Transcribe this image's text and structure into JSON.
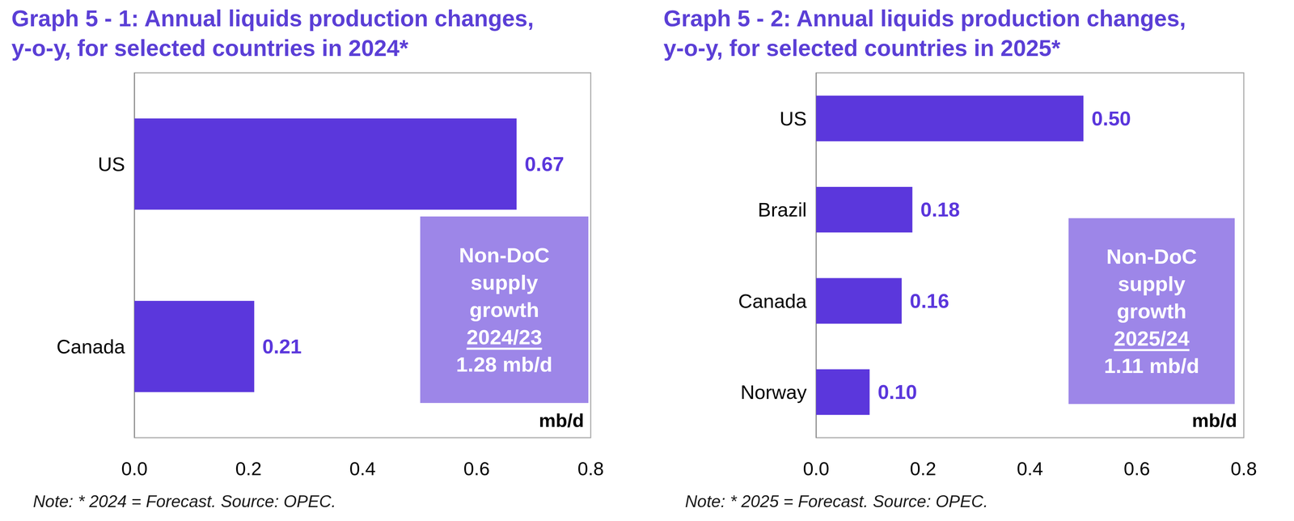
{
  "chart_data": [
    {
      "type": "bar",
      "title": "Graph 5 - 1: Annual liquids production changes, y-o-y, for selected countries in 2024*",
      "orientation": "horizontal",
      "categories": [
        "US",
        "Canada"
      ],
      "values": [
        0.67,
        0.21
      ],
      "color": "#5b37dc",
      "data_labels": true,
      "grid": false,
      "xlim": [
        0,
        0.8
      ],
      "xticks": [
        {
          "value": 0,
          "label": "0.0"
        },
        0.2,
        0.4,
        0.6,
        0.8
      ],
      "x_label": "mb/d",
      "annotations": [
        {
          "text": "Non-DoC supply growth",
          "period": "2024/23",
          "value_label": "1.28 mb/d"
        }
      ],
      "note": "Note: * 2024 = Forecast. Source: OPEC."
    },
    {
      "type": "bar",
      "title": "Graph 5 - 2: Annual liquids production changes, y-o-y, for selected countries in 2025*",
      "orientation": "horizontal",
      "categories": [
        "US",
        "Brazil",
        "Canada",
        "Norway"
      ],
      "values": [
        0.5,
        0.18,
        0.16,
        0.1
      ],
      "value_labels": [
        "0.50",
        "0.18",
        "0.16",
        "0.10"
      ],
      "color": "#5b37dc",
      "data_labels": true,
      "grid": false,
      "xlim": [
        0,
        0.8
      ],
      "xticks": [
        {
          "value": 0,
          "label": "0.0"
        },
        0.2,
        0.4,
        0.6,
        0.8
      ],
      "x_label": "mb/d",
      "annotations": [
        {
          "text": "Non-DoC supply growth",
          "period": "2025/24",
          "value_label": "1.11 mb/d"
        }
      ],
      "note": "Note: * 2025 = Forecast. Source: OPEC."
    }
  ]
}
